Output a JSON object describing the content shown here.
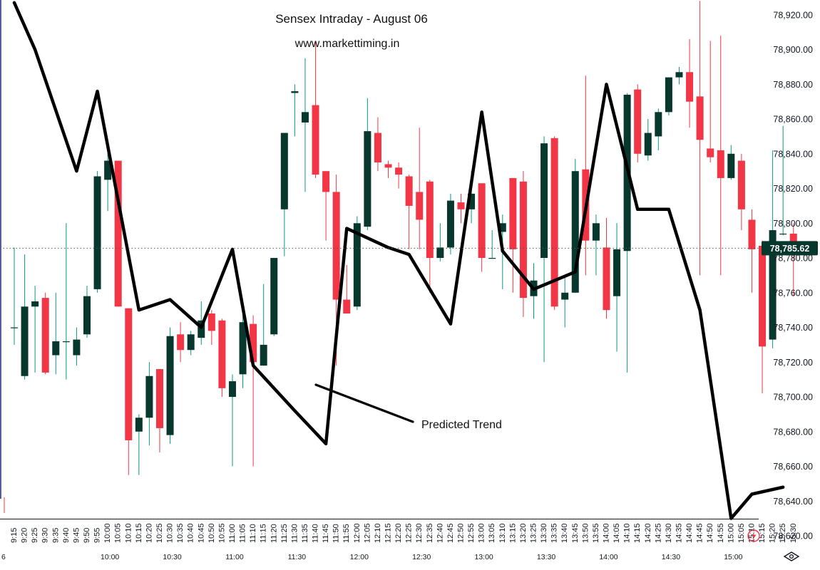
{
  "chart_data": {
    "type": "candlestick",
    "title": "Sensex Intraday - August 06",
    "subtitle": "www.markettiming.in",
    "annotation": "Predicted Trend",
    "last_price_label": "78,785.62",
    "last_price": 78785.62,
    "left_edge_label": "6",
    "ylim": [
      78610,
      78928
    ],
    "y_ticks": [
      {
        "value": 78620,
        "label": "78,620.00"
      },
      {
        "value": 78640,
        "label": "78,640.00"
      },
      {
        "value": 78660,
        "label": "78,660.00"
      },
      {
        "value": 78680,
        "label": "78,680.00"
      },
      {
        "value": 78700,
        "label": "78,700.00"
      },
      {
        "value": 78720,
        "label": "78,720.00"
      },
      {
        "value": 78740,
        "label": "78,740.00"
      },
      {
        "value": 78760,
        "label": "78,760.00"
      },
      {
        "value": 78780,
        "label": "78,780.00"
      },
      {
        "value": 78800,
        "label": "78,800.00"
      },
      {
        "value": 78820,
        "label": "78,820.00"
      },
      {
        "value": 78840,
        "label": "78,840.00"
      },
      {
        "value": 78860,
        "label": "78,860.00"
      },
      {
        "value": 78880,
        "label": "78,880.00"
      },
      {
        "value": 78900,
        "label": "78,900.00"
      },
      {
        "value": 78920,
        "label": "78,920.00"
      }
    ],
    "time_labels": [
      "9:15",
      "9:20",
      "9:25",
      "9:30",
      "9:35",
      "9:40",
      "9:45",
      "9:50",
      "9:55",
      "10:00",
      "10:05",
      "10:10",
      "10:15",
      "10:20",
      "10:25",
      "10:30",
      "10:35",
      "10:40",
      "10:45",
      "10:50",
      "10:55",
      "11:00",
      "11:05",
      "11:10",
      "11:15",
      "11:20",
      "11:25",
      "11:30",
      "11:35",
      "11:40",
      "11:45",
      "11:50",
      "11:55",
      "12:00",
      "12:05",
      "12:10",
      "12:15",
      "12:20",
      "12:25",
      "12:30",
      "12:35",
      "12:40",
      "12:45",
      "12:50",
      "12:55",
      "13:00",
      "13:05",
      "13:10",
      "13:15",
      "13:20",
      "13:25",
      "13:30",
      "13:35",
      "13:40",
      "13:45",
      "13:50",
      "13:55",
      "14:00",
      "14:05",
      "14:10",
      "14:15",
      "14:20",
      "14:25",
      "14:30",
      "14:35",
      "14:40",
      "14:45",
      "14:50",
      "14:55",
      "15:00",
      "15:05",
      "15:10",
      "15:15",
      "15:20",
      "15:25",
      "15:30"
    ],
    "major_time_labels": [
      {
        "label": "10:00",
        "index": 9
      },
      {
        "label": "10:30",
        "index": 15
      },
      {
        "label": "11:00",
        "index": 21
      },
      {
        "label": "11:30",
        "index": 27
      },
      {
        "label": "12:00",
        "index": 33
      },
      {
        "label": "12:30",
        "index": 39
      },
      {
        "label": "13:00",
        "index": 45
      },
      {
        "label": "13:30",
        "index": 51
      },
      {
        "label": "14:00",
        "index": 57
      },
      {
        "label": "14:30",
        "index": 63
      },
      {
        "label": "15:00",
        "index": 69
      }
    ],
    "candles": [
      {
        "o": 78740,
        "h": 78786,
        "l": 78730,
        "c": 78740
      },
      {
        "o": 78712,
        "h": 78782,
        "l": 78710,
        "c": 78752
      },
      {
        "o": 78752,
        "h": 78764,
        "l": 78714,
        "c": 78755
      },
      {
        "o": 78757,
        "h": 78760,
        "l": 78713,
        "c": 78714
      },
      {
        "o": 78724,
        "h": 78760,
        "l": 78713,
        "c": 78732
      },
      {
        "o": 78732,
        "h": 78800,
        "l": 78710,
        "c": 78732
      },
      {
        "o": 78724,
        "h": 78740,
        "l": 78718,
        "c": 78733
      },
      {
        "o": 78736,
        "h": 78764,
        "l": 78734,
        "c": 78758
      },
      {
        "o": 78762,
        "h": 78830,
        "l": 78760,
        "c": 78827
      },
      {
        "o": 78825,
        "h": 78842,
        "l": 78807,
        "c": 78836
      },
      {
        "o": 78836,
        "h": 78836,
        "l": 78752,
        "c": 78752
      },
      {
        "o": 78751,
        "h": 78751,
        "l": 78655,
        "c": 78675
      },
      {
        "o": 78680,
        "h": 78690,
        "l": 78655,
        "c": 78688
      },
      {
        "o": 78688,
        "h": 78720,
        "l": 78672,
        "c": 78712
      },
      {
        "o": 78716,
        "h": 78716,
        "l": 78668,
        "c": 78682
      },
      {
        "o": 78678,
        "h": 78740,
        "l": 78673,
        "c": 78735
      },
      {
        "o": 78736,
        "h": 78743,
        "l": 78720,
        "c": 78727
      },
      {
        "o": 78727,
        "h": 78738,
        "l": 78724,
        "c": 78736
      },
      {
        "o": 78734,
        "h": 78755,
        "l": 78730,
        "c": 78744
      },
      {
        "o": 78748,
        "h": 78750,
        "l": 78730,
        "c": 78738
      },
      {
        "o": 78744,
        "h": 78745,
        "l": 78700,
        "c": 78705
      },
      {
        "o": 78700,
        "h": 78713,
        "l": 78660,
        "c": 78709
      },
      {
        "o": 78713,
        "h": 78750,
        "l": 78705,
        "c": 78743
      },
      {
        "o": 78742,
        "h": 78747,
        "l": 78660,
        "c": 78720
      },
      {
        "o": 78718,
        "h": 78765,
        "l": 78718,
        "c": 78730
      },
      {
        "o": 78736,
        "h": 78780,
        "l": 78735,
        "c": 78780
      },
      {
        "o": 78808,
        "h": 78852,
        "l": 78781,
        "c": 78852
      },
      {
        "o": 78875,
        "h": 78880,
        "l": 78850,
        "c": 78876
      },
      {
        "o": 78858,
        "h": 78895,
        "l": 78818,
        "c": 78864
      },
      {
        "o": 78868,
        "h": 78905,
        "l": 78826,
        "c": 78828
      },
      {
        "o": 78830,
        "h": 78830,
        "l": 78790,
        "c": 78818
      },
      {
        "o": 78818,
        "h": 78828,
        "l": 78718,
        "c": 78756
      },
      {
        "o": 78756,
        "h": 78776,
        "l": 78748,
        "c": 78748
      },
      {
        "o": 78752,
        "h": 78804,
        "l": 78750,
        "c": 78800
      },
      {
        "o": 78798,
        "h": 78872,
        "l": 78796,
        "c": 78853
      },
      {
        "o": 78852,
        "h": 78861,
        "l": 78830,
        "c": 78835
      },
      {
        "o": 78834,
        "h": 78836,
        "l": 78826,
        "c": 78832
      },
      {
        "o": 78832,
        "h": 78835,
        "l": 78820,
        "c": 78828
      },
      {
        "o": 78827,
        "h": 78828,
        "l": 78785,
        "c": 78810
      },
      {
        "o": 78818,
        "h": 78855,
        "l": 78785,
        "c": 78802
      },
      {
        "o": 78824,
        "h": 78825,
        "l": 78760,
        "c": 78780
      },
      {
        "o": 78780,
        "h": 78800,
        "l": 78778,
        "c": 78786
      },
      {
        "o": 78786,
        "h": 78817,
        "l": 78782,
        "c": 78813
      },
      {
        "o": 78812,
        "h": 78817,
        "l": 78800,
        "c": 78808
      },
      {
        "o": 78808,
        "h": 78830,
        "l": 78800,
        "c": 78817
      },
      {
        "o": 78823,
        "h": 78823,
        "l": 78772,
        "c": 78780
      },
      {
        "o": 78780,
        "h": 78796,
        "l": 78780,
        "c": 78780
      },
      {
        "o": 78795,
        "h": 78805,
        "l": 78762,
        "c": 78800
      },
      {
        "o": 78826,
        "h": 78826,
        "l": 78760,
        "c": 78785
      },
      {
        "o": 78824,
        "h": 78830,
        "l": 78746,
        "c": 78757
      },
      {
        "o": 78758,
        "h": 78777,
        "l": 78745,
        "c": 78767
      },
      {
        "o": 78780,
        "h": 78850,
        "l": 78720,
        "c": 78846
      },
      {
        "o": 78849,
        "h": 78850,
        "l": 78750,
        "c": 78752
      },
      {
        "o": 78756,
        "h": 78770,
        "l": 78740,
        "c": 78760
      },
      {
        "o": 78760,
        "h": 78837,
        "l": 78760,
        "c": 78830
      },
      {
        "o": 78831,
        "h": 78885,
        "l": 78770,
        "c": 78790
      },
      {
        "o": 78790,
        "h": 78805,
        "l": 78770,
        "c": 78800
      },
      {
        "o": 78786,
        "h": 78803,
        "l": 78745,
        "c": 78750
      },
      {
        "o": 78758,
        "h": 78800,
        "l": 78726,
        "c": 78785
      },
      {
        "o": 78784,
        "h": 78875,
        "l": 78714,
        "c": 78874
      },
      {
        "o": 78877,
        "h": 78880,
        "l": 78835,
        "c": 78840
      },
      {
        "o": 78839,
        "h": 78860,
        "l": 78836,
        "c": 78852
      },
      {
        "o": 78850,
        "h": 78866,
        "l": 78842,
        "c": 78864
      },
      {
        "o": 78864,
        "h": 78884,
        "l": 78862,
        "c": 78884
      },
      {
        "o": 78884,
        "h": 78890,
        "l": 78880,
        "c": 78887
      },
      {
        "o": 78887,
        "h": 78906,
        "l": 78855,
        "c": 78870
      },
      {
        "o": 78873,
        "h": 78928,
        "l": 78770,
        "c": 78848
      },
      {
        "o": 78843,
        "h": 78905,
        "l": 78835,
        "c": 78838
      },
      {
        "o": 78842,
        "h": 78908,
        "l": 78770,
        "c": 78826
      },
      {
        "o": 78826,
        "h": 78845,
        "l": 78825,
        "c": 78840
      },
      {
        "o": 78836,
        "h": 78840,
        "l": 78796,
        "c": 78808
      },
      {
        "o": 78802,
        "h": 78808,
        "l": 78760,
        "c": 78785
      },
      {
        "o": 78787,
        "h": 78790,
        "l": 78702,
        "c": 78729
      },
      {
        "o": 78733,
        "h": 78842,
        "l": 78728,
        "c": 78796
      },
      {
        "o": 78794,
        "h": 78856,
        "l": 78793,
        "c": 78794
      },
      {
        "o": 78794,
        "h": 78800,
        "l": 78758,
        "c": 78784
      }
    ],
    "predicted_trend": [
      {
        "time": "9:15",
        "value": 78927
      },
      {
        "time": "9:25",
        "value": 78900
      },
      {
        "time": "9:45",
        "value": 78830
      },
      {
        "time": "9:55",
        "value": 78876
      },
      {
        "time": "10:15",
        "value": 78750
      },
      {
        "time": "10:30",
        "value": 78756
      },
      {
        "time": "10:45",
        "value": 78740
      },
      {
        "time": "11:00",
        "value": 78785
      },
      {
        "time": "11:10",
        "value": 78718
      },
      {
        "time": "11:30",
        "value": 78692
      },
      {
        "time": "11:45",
        "value": 78673
      },
      {
        "time": "11:55",
        "value": 78797
      },
      {
        "time": "12:15",
        "value": 78786
      },
      {
        "time": "12:25",
        "value": 78782
      },
      {
        "time": "12:45",
        "value": 78742
      },
      {
        "time": "13:00",
        "value": 78864
      },
      {
        "time": "13:10",
        "value": 78784
      },
      {
        "time": "13:25",
        "value": 78762
      },
      {
        "time": "13:45",
        "value": 78772
      },
      {
        "time": "14:00",
        "value": 78880
      },
      {
        "time": "14:15",
        "value": 78808
      },
      {
        "time": "14:30",
        "value": 78808
      },
      {
        "time": "14:45",
        "value": 78750
      },
      {
        "time": "15:00",
        "value": 78630
      },
      {
        "time": "15:10",
        "value": 78644
      },
      {
        "time": "15:25",
        "value": 78648
      }
    ],
    "colors": {
      "up": "#07372d",
      "down": "#f23645",
      "up_wick": "#089981",
      "down_wick": "#f23645",
      "trend": "#000000",
      "last_label_bg": "#07372d"
    }
  }
}
